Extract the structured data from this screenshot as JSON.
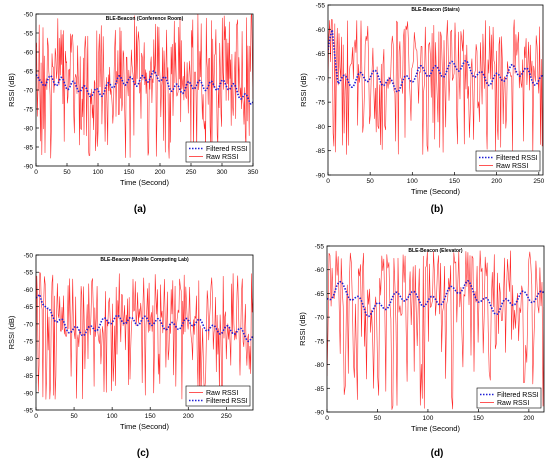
{
  "panels": [
    {
      "label": "(a)",
      "chart_data": {
        "type": "line",
        "title": "BLE-Beacon (Conference Room)",
        "xlabel": "Time (Second)",
        "ylabel": "RSSI (dB)",
        "xlim": [
          0,
          350
        ],
        "ylim": [
          -90,
          -50
        ],
        "xticks": [
          0,
          50,
          100,
          150,
          200,
          250,
          300,
          350
        ],
        "yticks": [
          -90,
          -85,
          -80,
          -75,
          -70,
          -65,
          -60,
          -55,
          -50
        ],
        "legend_position": "bottom-right",
        "legend_order": [
          "Filtered RSSI",
          "Raw RSSI"
        ],
        "series": [
          {
            "name": "Raw RSSI",
            "color": "#ff2a2a",
            "style": "solid",
            "n": 340,
            "mean": -70,
            "range": [
              -88,
              -50
            ],
            "note": "highly noisy fluctuation"
          },
          {
            "name": "Filtered RSSI",
            "color": "#1f1fd6",
            "style": "dotted",
            "n": 340,
            "keypoints": [
              [
                0,
                -66
              ],
              [
                5,
                -69
              ],
              [
                40,
                -67
              ],
              [
                80,
                -71
              ],
              [
                120,
                -69
              ],
              [
                160,
                -67
              ],
              [
                200,
                -67
              ],
              [
                240,
                -70
              ],
              [
                280,
                -68
              ],
              [
                320,
                -70
              ],
              [
                345,
                -72
              ]
            ]
          }
        ]
      }
    },
    {
      "label": "(b)",
      "chart_data": {
        "type": "line",
        "title": "BLE-Beacon (Stairs)",
        "xlabel": "Time (Second)",
        "ylabel": "RSSI (dB)",
        "xlim": [
          0,
          255
        ],
        "ylim": [
          -90,
          -55
        ],
        "xticks": [
          0,
          50,
          100,
          150,
          200,
          250
        ],
        "yticks": [
          -90,
          -85,
          -80,
          -75,
          -70,
          -65,
          -60,
          -55
        ],
        "legend_position": "bottom-right",
        "legend_order": [
          "Filtered RSSI",
          "Raw RSSI"
        ],
        "series": [
          {
            "name": "Raw RSSI",
            "color": "#ff2a2a",
            "style": "solid",
            "n": 255,
            "mean": -70,
            "range": [
              -86,
              -58
            ],
            "note": "highly noisy fluctuation"
          },
          {
            "name": "Filtered RSSI",
            "color": "#1f1fd6",
            "style": "dotted",
            "n": 255,
            "keypoints": [
              [
                0,
                -66
              ],
              [
                5,
                -61
              ],
              [
                12,
                -70
              ],
              [
                40,
                -70
              ],
              [
                80,
                -71
              ],
              [
                120,
                -69
              ],
              [
                150,
                -67
              ],
              [
                180,
                -70
              ],
              [
                220,
                -69
              ],
              [
                250,
                -70
              ]
            ]
          }
        ]
      }
    },
    {
      "label": "(c)",
      "chart_data": {
        "type": "line",
        "title": "BLE-Beacon (Mobile Computing Lab)",
        "xlabel": "Time (Second)",
        "ylabel": "RSSI (dB)",
        "xlim": [
          0,
          285
        ],
        "ylim": [
          -95,
          -50
        ],
        "xticks": [
          0,
          50,
          100,
          150,
          200,
          250
        ],
        "yticks": [
          -95,
          -90,
          -85,
          -80,
          -75,
          -70,
          -65,
          -60,
          -55,
          -50
        ],
        "legend_position": "bottom-right",
        "legend_order": [
          "Raw RSSI",
          "Filtered RSSI"
        ],
        "series": [
          {
            "name": "Raw RSSI",
            "color": "#ff2a2a",
            "style": "solid",
            "n": 285,
            "mean": -71,
            "range": [
              -92,
              -55
            ],
            "note": "highly noisy fluctuation"
          },
          {
            "name": "Filtered RSSI",
            "color": "#1f1fd6",
            "style": "dotted",
            "n": 285,
            "keypoints": [
              [
                0,
                -63
              ],
              [
                5,
                -60
              ],
              [
                15,
                -66
              ],
              [
                40,
                -72
              ],
              [
                80,
                -71
              ],
              [
                115,
                -68
              ],
              [
                150,
                -70
              ],
              [
                200,
                -70
              ],
              [
                240,
                -71
              ],
              [
                280,
                -74
              ]
            ]
          }
        ]
      }
    },
    {
      "label": "(d)",
      "chart_data": {
        "type": "line",
        "title": "BLE-Beacon (Elevator)",
        "xlabel": "Time (Second)",
        "ylabel": "RSSI (dB)",
        "xlim": [
          0,
          215
        ],
        "ylim": [
          -90,
          -55
        ],
        "xticks": [
          0,
          50,
          100,
          150,
          200
        ],
        "yticks": [
          -90,
          -85,
          -80,
          -75,
          -70,
          -65,
          -60,
          -55
        ],
        "legend_position": "bottom-right",
        "legend_order": [
          "Filtered RSSI",
          "Raw RSSI"
        ],
        "series": [
          {
            "name": "Raw RSSI",
            "color": "#ff2a2a",
            "style": "solid",
            "n": 215,
            "mean": -68,
            "range": [
              -90,
              -56
            ],
            "note": "highly noisy fluctuation"
          },
          {
            "name": "Filtered RSSI",
            "color": "#1f1fd6",
            "style": "dotted",
            "n": 215,
            "keypoints": [
              [
                0,
                -66
              ],
              [
                10,
                -64
              ],
              [
                40,
                -68
              ],
              [
                80,
                -66
              ],
              [
                110,
                -66
              ],
              [
                140,
                -64
              ],
              [
                170,
                -68
              ],
              [
                200,
                -66
              ],
              [
                213,
                -65
              ]
            ]
          }
        ]
      }
    }
  ]
}
